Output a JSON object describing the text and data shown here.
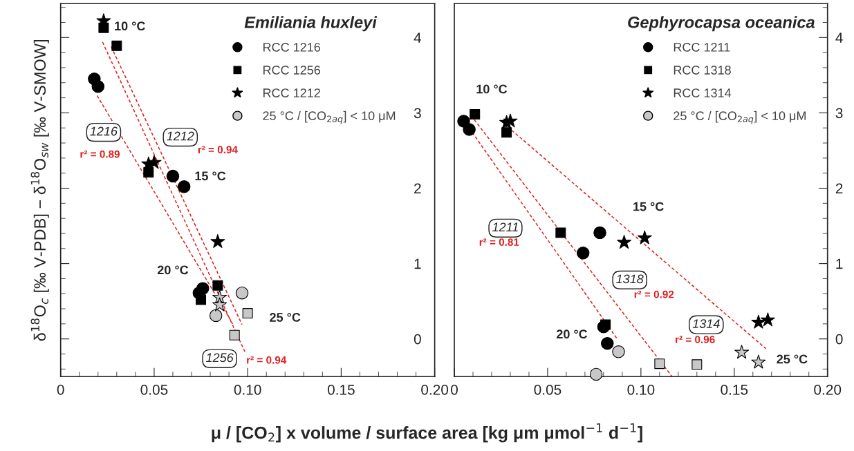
{
  "chart_data": [
    {
      "type": "scatter",
      "legend_title": "Emiliania huxleyi",
      "ylabel": "δ$^{18}$O$_{c}$ [‰ V-PDB] − δ$^{18}$O$_{sw}$ [‰ V-SMOW]",
      "xlabel": "μ / [CO$_{2}$] x volume / surface area [kg μm μmol$^{−1}$ d$^{−1}$]",
      "xlim": [
        0,
        0.2
      ],
      "ylim": [
        -0.5,
        4.45
      ],
      "legend": "top right",
      "grid": false,
      "xticks": [
        0,
        {
          "value": 0.01,
          "label": null
        },
        {
          "value": 0.02,
          "label": null
        },
        {
          "value": 0.03,
          "label": null
        },
        {
          "value": 0.04,
          "label": null
        },
        0.05,
        {
          "value": 0.06,
          "label": null
        },
        {
          "value": 0.07,
          "label": null
        },
        {
          "value": 0.08,
          "label": null
        },
        {
          "value": 0.09,
          "label": null
        },
        {
          "value": 0.1,
          "label": "0.10"
        },
        {
          "value": 0.11,
          "label": null
        },
        {
          "value": 0.12,
          "label": null
        },
        {
          "value": 0.13,
          "label": null
        },
        {
          "value": 0.14,
          "label": null
        },
        0.15,
        {
          "value": 0.16,
          "label": null
        },
        {
          "value": 0.17,
          "label": null
        },
        {
          "value": 0.18,
          "label": null
        },
        {
          "value": 0.19,
          "label": null
        },
        {
          "value": 0.2,
          "label": "0.20"
        }
      ],
      "yticks": [
        {
          "value": -0.4,
          "label": null
        },
        {
          "value": -0.2,
          "label": null
        },
        0,
        {
          "value": 0.2,
          "label": null
        },
        {
          "value": 0.4,
          "label": null
        },
        {
          "value": 0.6,
          "label": null
        },
        {
          "value": 0.8,
          "label": null
        },
        1,
        {
          "value": 1.2,
          "label": null
        },
        {
          "value": 1.4,
          "label": null
        },
        {
          "value": 1.6,
          "label": null
        },
        {
          "value": 1.8,
          "label": null
        },
        2,
        {
          "value": 2.2,
          "label": null
        },
        {
          "value": 2.4,
          "label": null
        },
        {
          "value": 2.6,
          "label": null
        },
        {
          "value": 2.8,
          "label": null
        },
        3,
        {
          "value": 3.2,
          "label": null
        },
        {
          "value": 3.4,
          "label": null
        },
        {
          "value": 3.6,
          "label": null
        },
        {
          "value": 3.8,
          "label": null
        },
        4,
        {
          "value": 4.2,
          "label": null
        },
        {
          "value": 4.4,
          "label": null
        }
      ],
      "series": [
        {
          "name": "RCC 1216",
          "color": "#000000",
          "marker": "circle",
          "x": [
            0.018,
            0.02,
            0.06,
            0.066,
            0.076,
            0.074
          ],
          "values": [
            3.45,
            3.35,
            2.16,
            2.02,
            0.67,
            0.61
          ]
        },
        {
          "name": "RCC 1256",
          "color": "#000000",
          "marker": "square",
          "x": [
            0.023,
            0.03,
            0.047,
            0.075,
            0.084
          ],
          "values": [
            4.13,
            3.89,
            2.21,
            0.52,
            0.71
          ]
        },
        {
          "name": "RCC 1212",
          "color": "#000000",
          "marker": "star",
          "x": [
            0.023,
            0.047,
            0.05,
            0.084
          ],
          "values": [
            4.22,
            2.32,
            2.34,
            1.29
          ]
        },
        {
          "name": "25 °C / [CO$_{2aq}$] < 10 μM",
          "color": "#c8c8c8",
          "marker": "circle",
          "x": [
            0.097,
            0.083
          ],
          "values": [
            0.61,
            0.31
          ]
        },
        {
          "color": "#c8c8c8",
          "marker": "square",
          "x": [
            0.1,
            0.093
          ],
          "values": [
            0.34,
            0.05
          ]
        },
        {
          "color": "#c8c8c8",
          "marker": "star",
          "x": [
            0.085,
            0.085
          ],
          "values": [
            0.55,
            0.45
          ]
        },
        {
          "type": "line",
          "color": "#e02020",
          "line_style": "dashed",
          "marker": "none",
          "x": [
            0.0195,
            0.092
          ],
          "values": [
            3.23,
            0.2
          ]
        },
        {
          "type": "line",
          "color": "#e02020",
          "line_style": "dashed",
          "marker": "none",
          "x": [
            0.027,
            0.097
          ],
          "values": [
            3.88,
            0.19
          ]
        },
        {
          "type": "line",
          "color": "#e02020",
          "line_style": "dashed",
          "marker": "none",
          "x": [
            0.0224,
            0.0985
          ],
          "values": [
            3.94,
            -0.17
          ]
        }
      ],
      "annotations": [
        "10 °C",
        "15 °C",
        "20 °C",
        "25 °C",
        "1216",
        "r² = 0.89",
        "1212",
        "r² = 0.94",
        "1256",
        "r² = 0.94"
      ]
    },
    {
      "type": "scatter",
      "legend_title": "Gephyrocapsa oceanica",
      "xlim": [
        0,
        0.2
      ],
      "ylim": [
        -0.5,
        4.45
      ],
      "legend": "top right",
      "grid": false,
      "xticks": [
        0,
        {
          "value": 0.01,
          "label": null
        },
        {
          "value": 0.02,
          "label": null
        },
        {
          "value": 0.03,
          "label": null
        },
        {
          "value": 0.04,
          "label": null
        },
        0.05,
        {
          "value": 0.06,
          "label": null
        },
        {
          "value": 0.07,
          "label": null
        },
        {
          "value": 0.08,
          "label": null
        },
        {
          "value": 0.09,
          "label": null
        },
        {
          "value": 0.1,
          "label": "0.10"
        },
        {
          "value": 0.11,
          "label": null
        },
        {
          "value": 0.12,
          "label": null
        },
        {
          "value": 0.13,
          "label": null
        },
        {
          "value": 0.14,
          "label": null
        },
        0.15,
        {
          "value": 0.16,
          "label": null
        },
        {
          "value": 0.17,
          "label": null
        },
        {
          "value": 0.18,
          "label": null
        },
        {
          "value": 0.19,
          "label": null
        },
        {
          "value": 0.2,
          "label": "0.20"
        }
      ],
      "yticks": [
        {
          "value": -0.4,
          "label": null
        },
        {
          "value": -0.2,
          "label": null
        },
        0,
        {
          "value": 0.2,
          "label": null
        },
        {
          "value": 0.4,
          "label": null
        },
        {
          "value": 0.6,
          "label": null
        },
        {
          "value": 0.8,
          "label": null
        },
        1,
        {
          "value": 1.2,
          "label": null
        },
        {
          "value": 1.4,
          "label": null
        },
        {
          "value": 1.6,
          "label": null
        },
        {
          "value": 1.8,
          "label": null
        },
        2,
        {
          "value": 2.2,
          "label": null
        },
        {
          "value": 2.4,
          "label": null
        },
        {
          "value": 2.6,
          "label": null
        },
        {
          "value": 2.8,
          "label": null
        },
        3,
        {
          "value": 3.2,
          "label": null
        },
        {
          "value": 3.4,
          "label": null
        },
        {
          "value": 3.6,
          "label": null
        },
        {
          "value": 3.8,
          "label": null
        },
        4,
        {
          "value": 4.2,
          "label": null
        },
        {
          "value": 4.4,
          "label": null
        }
      ],
      "series": [
        {
          "name": "RCC 1211",
          "color": "#000000",
          "marker": "circle",
          "x": [
            0.005,
            0.008,
            0.078,
            0.069,
            0.08,
            0.082
          ],
          "values": [
            2.89,
            2.78,
            1.41,
            1.14,
            0.16,
            -0.06
          ]
        },
        {
          "name": "RCC 1318",
          "color": "#000000",
          "marker": "square",
          "x": [
            0.011,
            0.028,
            0.057,
            0.081
          ],
          "values": [
            2.98,
            2.74,
            1.41,
            0.19
          ]
        },
        {
          "name": "RCC 1314",
          "color": "#000000",
          "marker": "star",
          "x": [
            0.028,
            0.03,
            0.091,
            0.102,
            0.163,
            0.168
          ],
          "values": [
            2.87,
            2.89,
            1.28,
            1.34,
            0.22,
            0.25
          ]
        },
        {
          "name": "25 °C / [CO$_{2aq}$] < 10 μM",
          "color": "#c8c8c8",
          "marker": "circle",
          "x": [
            0.088,
            0.076
          ],
          "values": [
            -0.17,
            -0.47
          ]
        },
        {
          "color": "#c8c8c8",
          "marker": "square",
          "x": [
            0.11,
            0.13
          ],
          "values": [
            -0.33,
            -0.34
          ]
        },
        {
          "color": "#c8c8c8",
          "marker": "star",
          "x": [
            0.154,
            0.163
          ],
          "values": [
            -0.18,
            -0.31
          ]
        },
        {
          "type": "line",
          "color": "#e02020",
          "line_style": "dashed",
          "marker": "none",
          "x": [
            0.0096,
            0.087
          ],
          "values": [
            2.74,
            0.01
          ]
        },
        {
          "type": "line",
          "color": "#e02020",
          "line_style": "dashed",
          "marker": "none",
          "x": [
            0.0107,
            0.1167
          ],
          "values": [
            2.91,
            -0.5
          ]
        },
        {
          "type": "line",
          "color": "#e02020",
          "line_style": "dashed",
          "marker": "none",
          "x": [
            0.0307,
            0.167
          ],
          "values": [
            2.77,
            -0.13
          ]
        }
      ],
      "annotations": [
        "10 °C",
        "15 °C",
        "20 °C",
        "25 °C",
        "1211",
        "r² = 0.81",
        "1318",
        "r² = 0.92",
        "1314",
        "r² = 0.96"
      ]
    }
  ]
}
